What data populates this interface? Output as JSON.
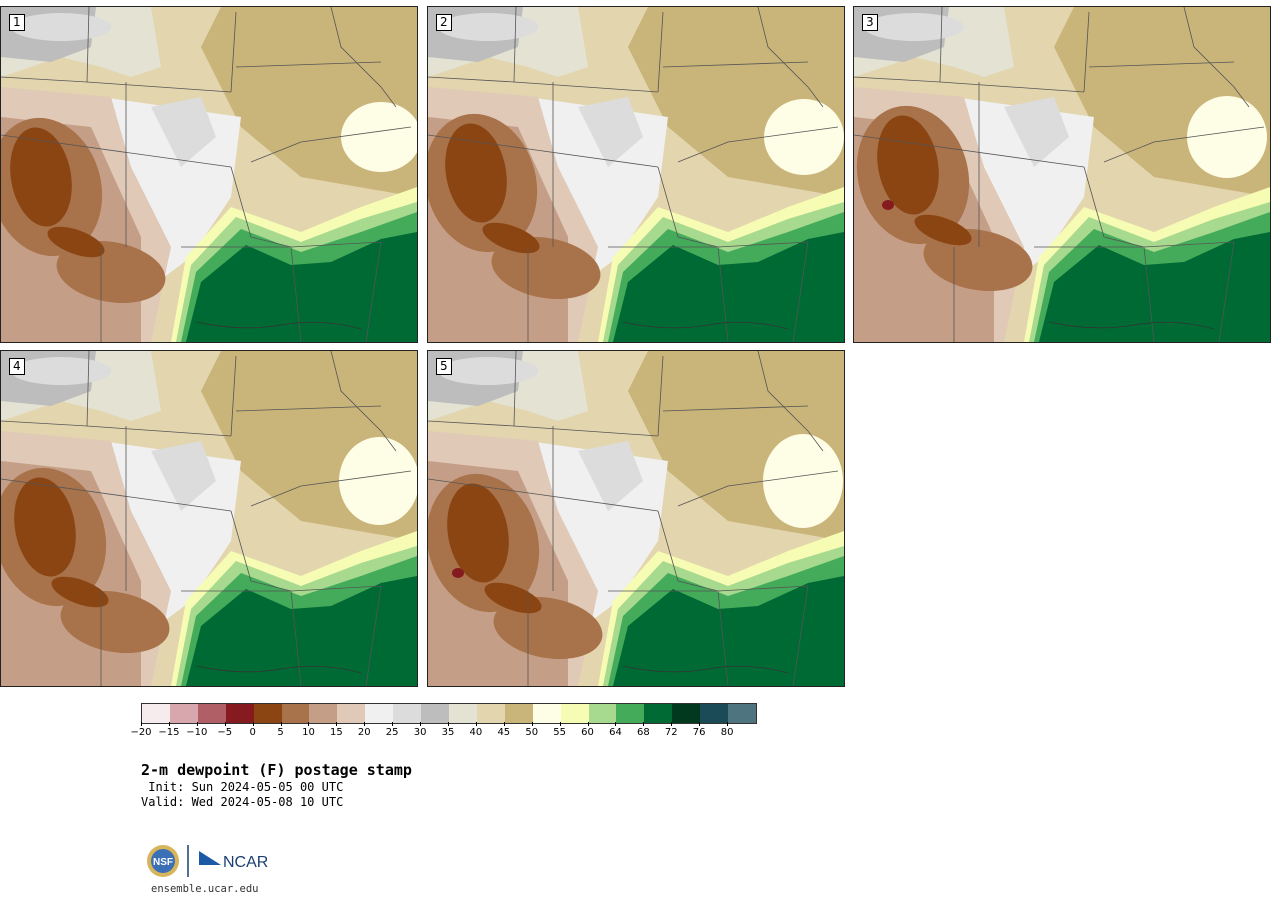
{
  "panels": [
    {
      "label": "1",
      "variant": 0
    },
    {
      "label": "2",
      "variant": 1
    },
    {
      "label": "3",
      "variant": 2
    },
    {
      "label": "4",
      "variant": 3
    },
    {
      "label": "5",
      "variant": 4
    }
  ],
  "colorbar": {
    "colors": [
      "#f6ebed",
      "#d8a7ad",
      "#b05f66",
      "#851a1f",
      "#8a4512",
      "#a8724a",
      "#c49e86",
      "#e0c9b7",
      "#f0f0f0",
      "#dcdcdc",
      "#bdbdbd",
      "#e3e2d3",
      "#e3d5ae",
      "#c9b47a",
      "#fefde6",
      "#f6fcb3",
      "#a7d98e",
      "#44ab5a",
      "#006a35",
      "#00391e",
      "#1a4b56",
      "#4e7480"
    ],
    "ticks": [
      "−20",
      "−15",
      "−10",
      "−5",
      "0",
      "5",
      "10",
      "15",
      "20",
      "25",
      "30",
      "35",
      "40",
      "45",
      "50",
      "55",
      "60",
      "64",
      "68",
      "72",
      "76",
      "80"
    ]
  },
  "title": "2-m dewpoint (F) postage stamp",
  "init": " Init: Sun 2024-05-05 00 UTC",
  "valid": "Valid: Wed 2024-05-08 10 UTC",
  "logo": {
    "nsf_text": "NSF",
    "ncar_text": "NCAR"
  },
  "site": "ensemble.ucar.edu"
}
